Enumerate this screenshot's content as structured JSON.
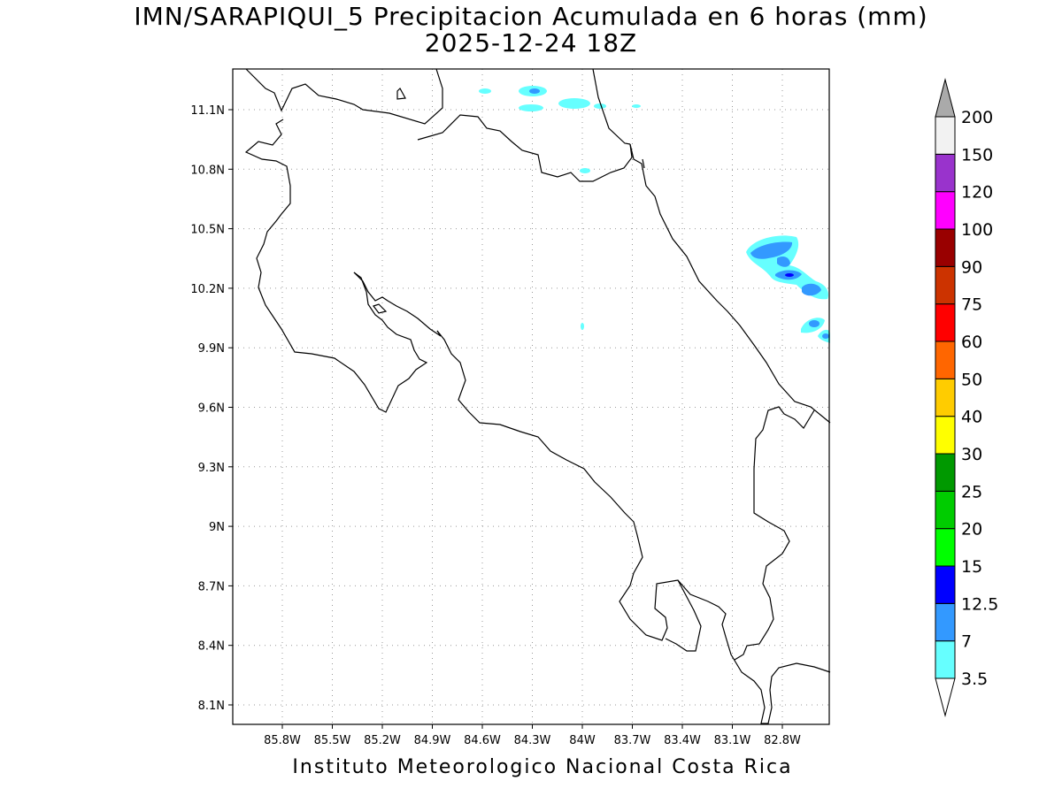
{
  "title": {
    "line1": "IMN/SARAPIQUI_5 Precipitacion Acumulada en 6 horas (mm)",
    "line2": "2025-12-24 18Z"
  },
  "credit": "Instituto Meteorologico Nacional Costa Rica",
  "map": {
    "lon_range": [
      -86.1,
      -82.5
    ],
    "lat_range": [
      8.0,
      11.3
    ],
    "x_ticks": [
      "85.8W",
      "85.5W",
      "85.2W",
      "84.9W",
      "84.6W",
      "84.3W",
      "84W",
      "83.7W",
      "83.4W",
      "83.1W",
      "82.8W"
    ],
    "y_ticks": [
      "11.1N",
      "10.8N",
      "10.5N",
      "10.2N",
      "9.9N",
      "9.6N",
      "9.3N",
      "9N",
      "8.7N",
      "8.4N",
      "8.1N"
    ],
    "gridlines": "dotted",
    "coastline_color": "#000000"
  },
  "colorbar": {
    "labels": [
      "3.5",
      "7",
      "12.5",
      "15",
      "20",
      "25",
      "30",
      "40",
      "50",
      "60",
      "75",
      "90",
      "100",
      "120",
      "150",
      "200"
    ],
    "colors": [
      "#66ffff",
      "#3399ff",
      "#0000ff",
      "#00ff00",
      "#00cc00",
      "#009900",
      "#ffff00",
      "#ffcc00",
      "#ff6600",
      "#ff0000",
      "#cc3300",
      "#990000",
      "#ff00ff",
      "#9933cc",
      "#f2f2f2"
    ],
    "top_arrow_color": "#aaaaaa",
    "bottom_arrow_color": "#ffffff"
  }
}
